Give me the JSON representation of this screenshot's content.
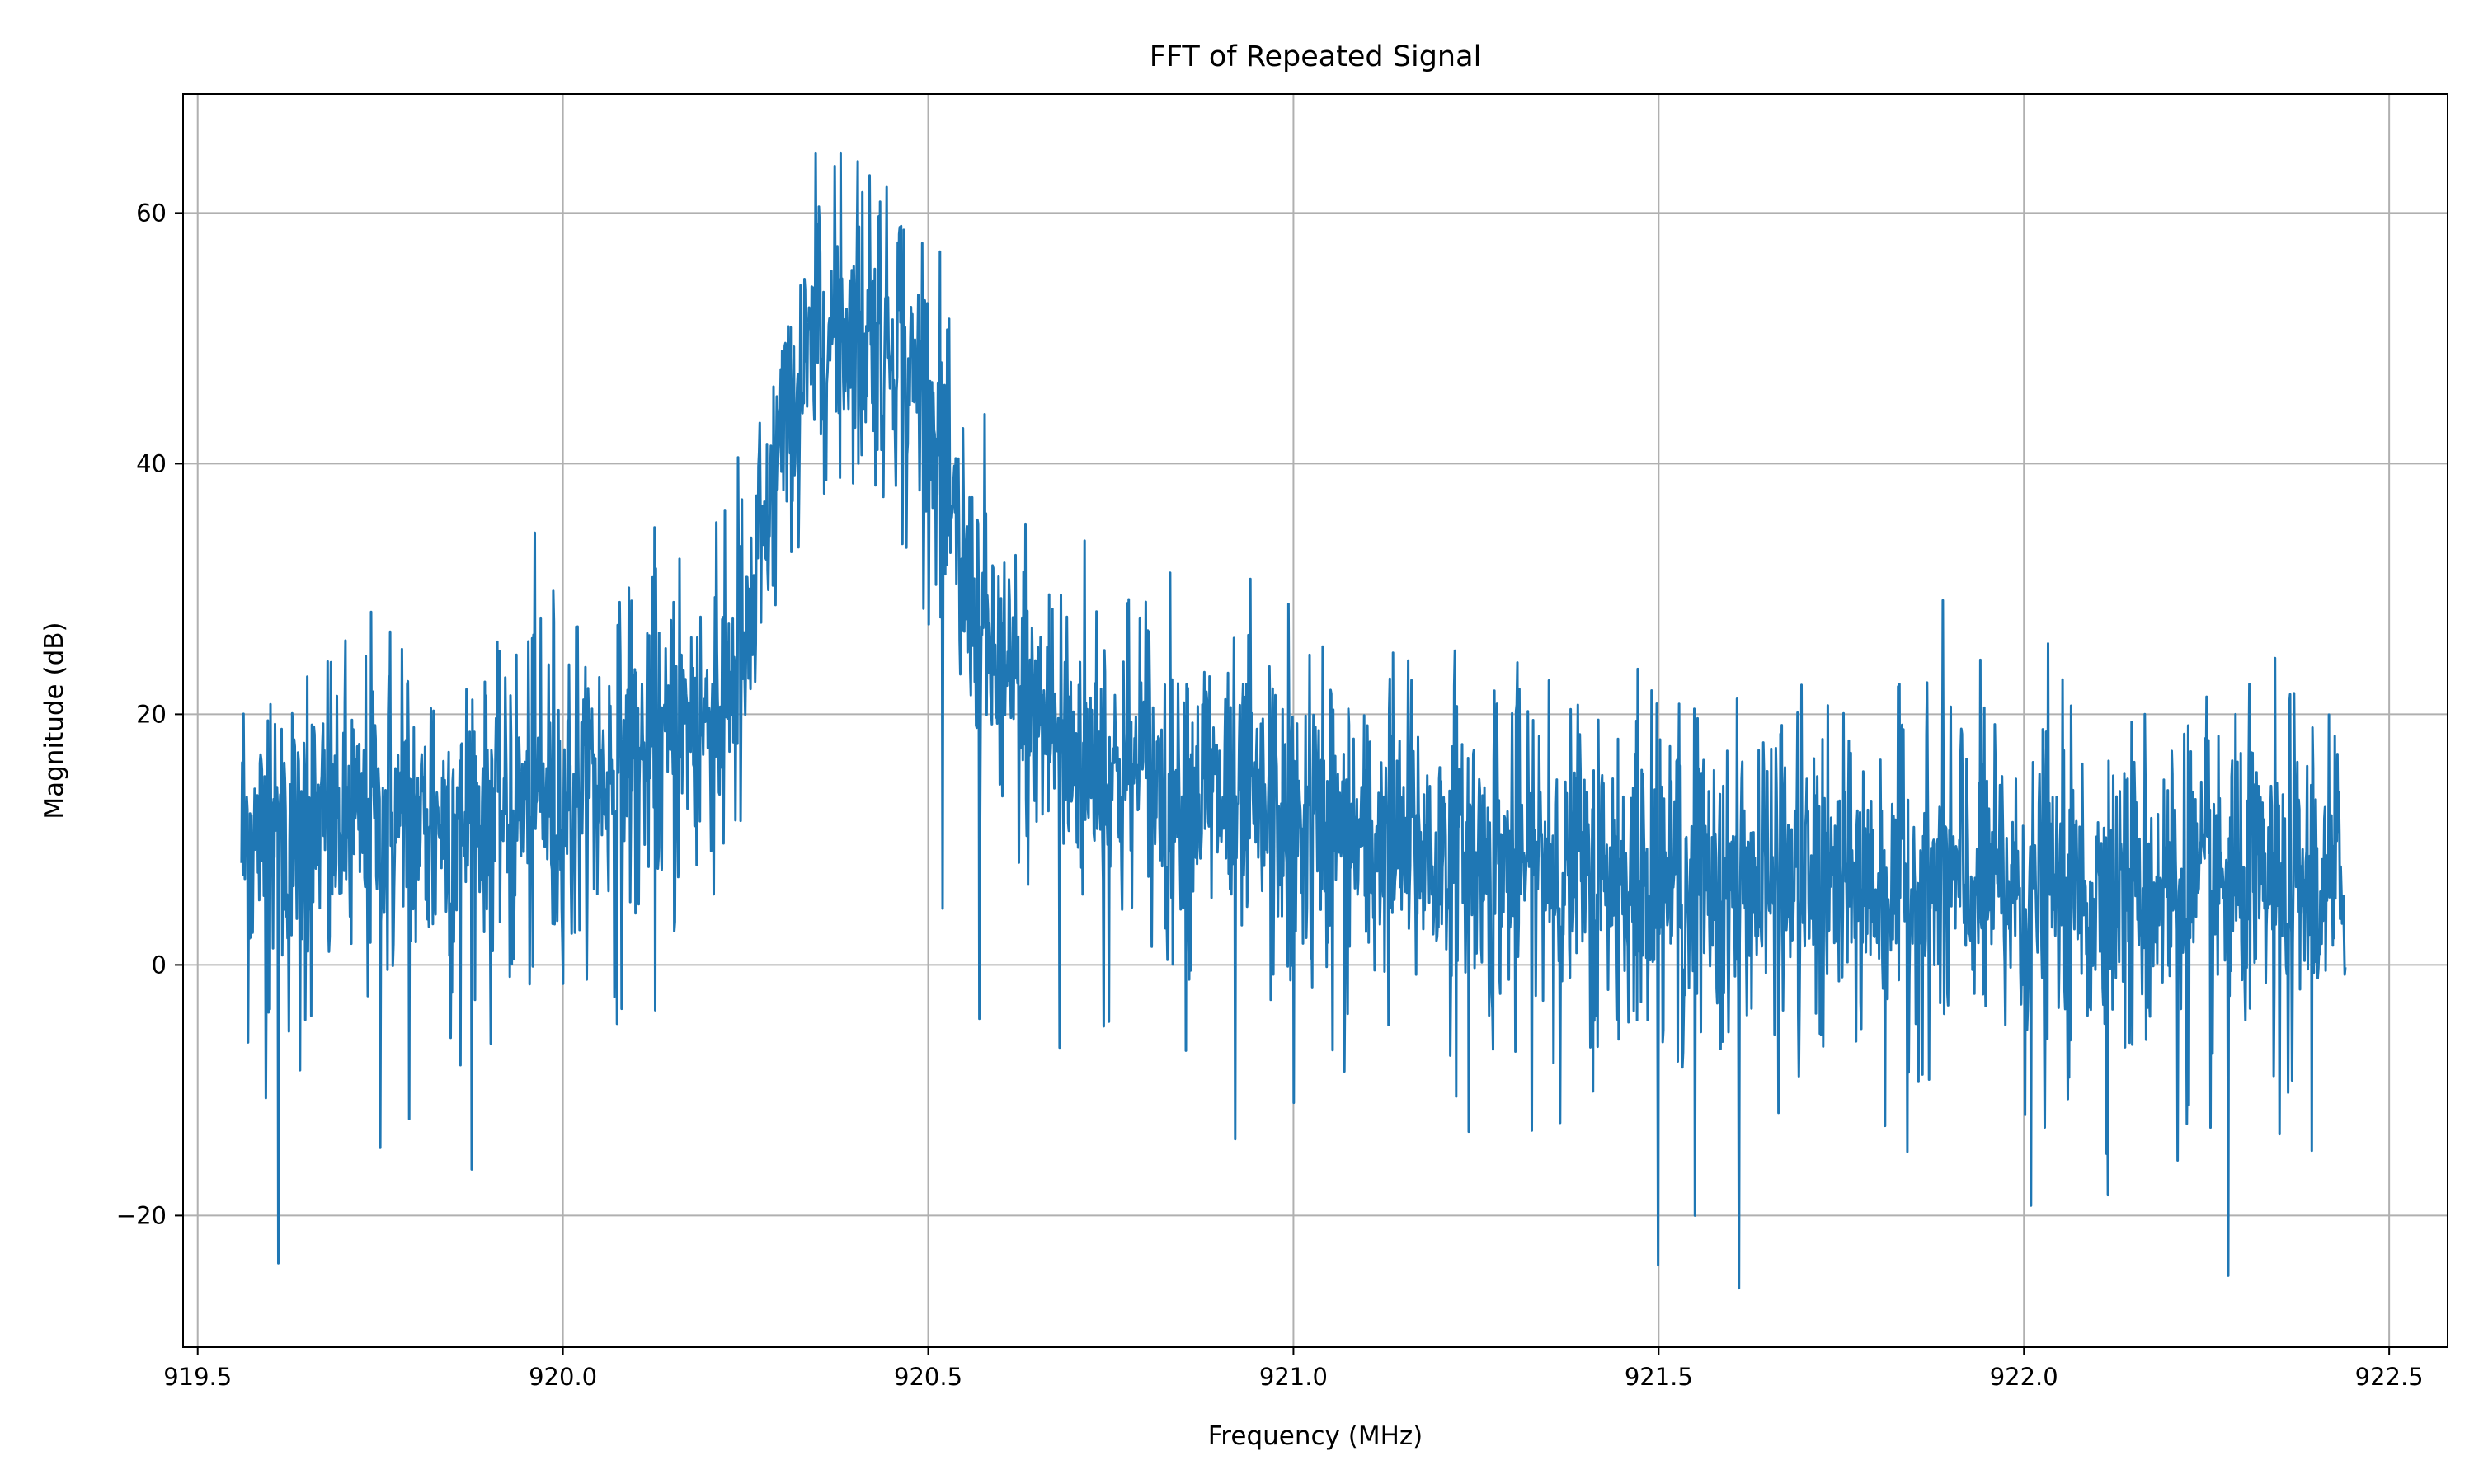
{
  "chart_data": {
    "type": "line",
    "title": "FFT of Repeated Signal",
    "xlabel": "Frequency (MHz)",
    "ylabel": "Magnitude (dB)",
    "xlim": [
      919.48,
      922.58
    ],
    "ylim": [
      -30.5,
      69.5
    ],
    "xticks": [
      919.5,
      920.0,
      920.5,
      921.0,
      921.5,
      922.0,
      922.5
    ],
    "xtick_labels": [
      "919.5",
      "920.0",
      "920.5",
      "921.0",
      "921.5",
      "922.0",
      "922.5"
    ],
    "yticks": [
      -20,
      0,
      20,
      40,
      60
    ],
    "ytick_labels": [
      "−20",
      "0",
      "20",
      "40",
      "60"
    ],
    "grid": true,
    "line_color": "#1f77b4",
    "series": [
      {
        "x_range": [
          919.56,
          922.44
        ],
        "n_points": 3200,
        "envelope_x": [
          919.56,
          919.7,
          919.9,
          920.0,
          920.1,
          920.2,
          920.25,
          920.3,
          920.35,
          920.4,
          920.45,
          920.5,
          920.55,
          920.6,
          920.7,
          920.8,
          920.9,
          921.0,
          921.2,
          921.5,
          922.0,
          922.44
        ],
        "envelope_y": [
          10,
          11,
          12,
          13.5,
          16,
          20,
          24,
          42,
          50,
          51,
          50,
          45,
          30,
          22,
          17,
          14.5,
          13,
          11,
          9,
          6.5,
          6,
          6
        ],
        "upper_peaks": [
          [
            919.6,
            20.8
          ],
          [
            919.65,
            23.0
          ],
          [
            919.74,
            21.8
          ],
          [
            919.78,
            25.2
          ],
          [
            919.86,
            24.2
          ],
          [
            919.97,
            27.7
          ],
          [
            920.02,
            27.0
          ],
          [
            920.09,
            30.1
          ],
          [
            920.16,
            32.4
          ],
          [
            920.21,
            35.3
          ],
          [
            920.24,
            40.5
          ],
          [
            920.3,
            49.0
          ],
          [
            920.35,
            60.5
          ],
          [
            920.38,
            64.8
          ],
          [
            920.42,
            63.0
          ],
          [
            920.46,
            58.3
          ],
          [
            920.49,
            49.8
          ],
          [
            920.52,
            41.0
          ],
          [
            920.56,
            37.3
          ],
          [
            920.62,
            32.7
          ],
          [
            920.67,
            28.4
          ],
          [
            920.73,
            28.2
          ],
          [
            920.79,
            27.7
          ],
          [
            920.91,
            23.3
          ],
          [
            921.04,
            25.4
          ],
          [
            921.24,
            22.6
          ],
          [
            921.35,
            22.7
          ],
          [
            921.49,
            21.9
          ],
          [
            921.66,
            17.3
          ],
          [
            921.9,
            20.6
          ],
          [
            921.96,
            19.2
          ],
          [
            922.25,
            21.4
          ],
          [
            922.29,
            20.0
          ]
        ],
        "lower_dips": [
          [
            919.61,
            -23.8
          ],
          [
            919.64,
            -8.4
          ],
          [
            919.75,
            -14.6
          ],
          [
            919.79,
            -12.3
          ],
          [
            919.86,
            -8.0
          ],
          [
            920.0,
            -1.5
          ],
          [
            920.08,
            -3.5
          ],
          [
            920.22,
            9.7
          ],
          [
            920.47,
            33.3
          ],
          [
            920.52,
            4.5
          ],
          [
            920.57,
            -4.3
          ],
          [
            920.68,
            -6.6
          ],
          [
            920.74,
            -4.9
          ],
          [
            920.92,
            -13.9
          ],
          [
            921.0,
            -11.0
          ],
          [
            921.07,
            -8.5
          ],
          [
            921.24,
            -13.3
          ],
          [
            921.41,
            -10.1
          ],
          [
            921.55,
            -20.0
          ],
          [
            921.61,
            -25.8
          ],
          [
            921.84,
            -14.9
          ],
          [
            922.01,
            -19.2
          ],
          [
            922.21,
            -15.6
          ],
          [
            922.28,
            -24.8
          ],
          [
            922.35,
            -13.5
          ]
        ]
      }
    ]
  }
}
